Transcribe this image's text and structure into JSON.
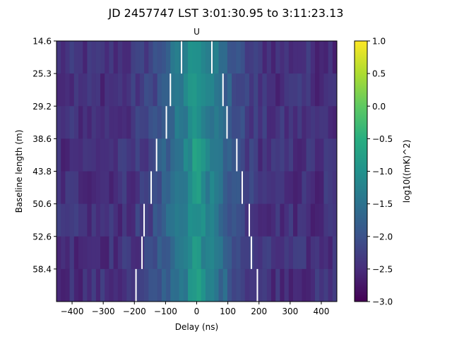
{
  "chart_data": {
    "type": "heatmap",
    "title": "JD 2457747 LST 3:01:30.95 to 3:11:23.13",
    "subtitle": "U",
    "xlabel": "Delay (ns)",
    "ylabel": "Baseline length (m)",
    "xlim": [
      -450,
      450
    ],
    "x_ticks": [
      -400,
      -300,
      -200,
      -100,
      0,
      100,
      200,
      300,
      400
    ],
    "x_tick_labels": [
      "−400",
      "−300",
      "−200",
      "−100",
      "0",
      "100",
      "200",
      "300",
      "400"
    ],
    "y_categories": [
      "14.6",
      "25.3",
      "29.2",
      "38.6",
      "43.8",
      "50.6",
      "52.6",
      "58.4"
    ],
    "horizon_delay_ns": [
      48.7,
      84.4,
      97.4,
      128.8,
      146.1,
      168.8,
      175.5,
      194.8
    ],
    "colorbar": {
      "label": "log10((mK)^2)",
      "colormap": "viridis",
      "range": [
        -3.0,
        1.0
      ],
      "ticks": [
        1.0,
        0.5,
        0.0,
        -0.5,
        -1.0,
        -1.5,
        -2.0,
        -2.5,
        -3.0
      ],
      "tick_labels": [
        "1.0",
        "0.5",
        "0.0",
        "−0.5",
        "−1.0",
        "−1.5",
        "−2.0",
        "−2.5",
        "−3.0"
      ]
    },
    "grid": false,
    "legend": "none"
  },
  "colors": {
    "horizon_line": "#ffffff",
    "axis": "#000000"
  }
}
